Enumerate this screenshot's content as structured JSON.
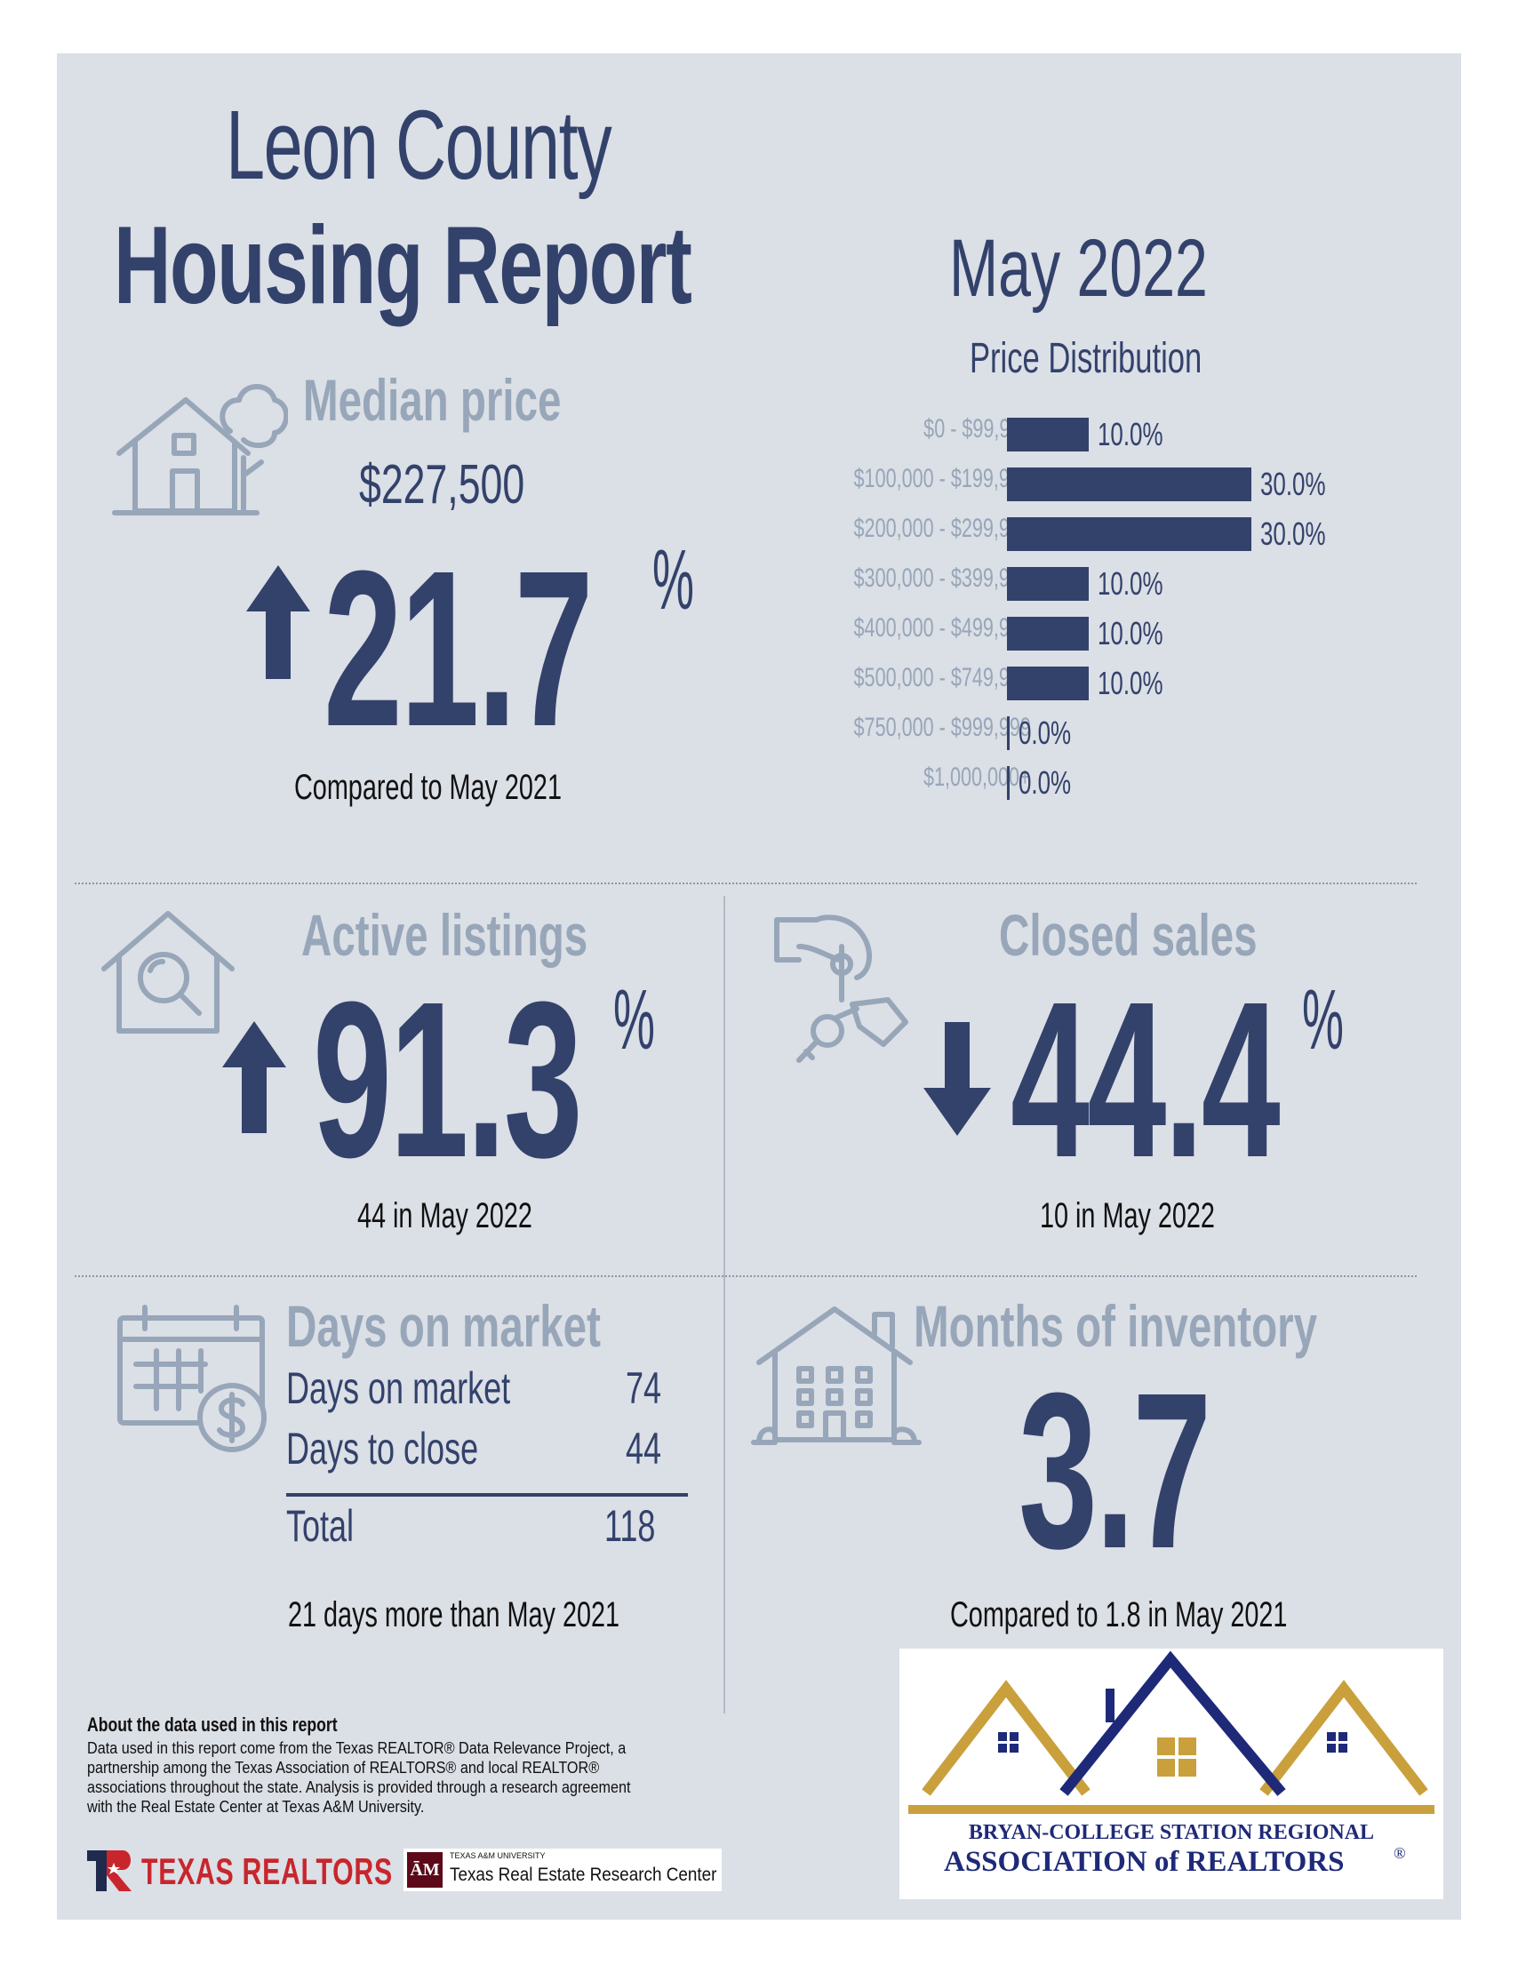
{
  "header": {
    "title_line1": "Leon County",
    "title_line2": "Housing Report",
    "month": "May 2022"
  },
  "median_price": {
    "heading": "Median price",
    "price": "$227,500",
    "change_value": "21.7",
    "change_unit": "%",
    "direction": "up",
    "caption": "Compared to May 2021"
  },
  "price_distribution": {
    "heading": "Price Distribution",
    "rows": [
      {
        "label": "$0 - $99,999",
        "value_text": "10.0%"
      },
      {
        "label": "$100,000 - $199,999",
        "value_text": "30.0%"
      },
      {
        "label": "$200,000 - $299,999",
        "value_text": "30.0%"
      },
      {
        "label": "$300,000 - $399,999",
        "value_text": "10.0%"
      },
      {
        "label": "$400,000 - $499,999",
        "value_text": "10.0%"
      },
      {
        "label": "$500,000 - $749,999",
        "value_text": "10.0%"
      },
      {
        "label": "$750,000 - $999,999",
        "value_text": "0.0%"
      },
      {
        "label": "$1,000,000+",
        "value_text": "0.0%"
      }
    ]
  },
  "chart_data": {
    "type": "bar",
    "orientation": "horizontal",
    "title": "Price Distribution",
    "categories": [
      "$0 - $99,999",
      "$100,000 - $199,999",
      "$200,000 - $299,999",
      "$300,000 - $399,999",
      "$400,000 - $499,999",
      "$500,000 - $749,999",
      "$750,000 - $999,999",
      "$1,000,000+"
    ],
    "values": [
      10.0,
      30.0,
      30.0,
      10.0,
      10.0,
      10.0,
      0.0,
      0.0
    ],
    "xlim": [
      0,
      30
    ],
    "grid": false
  },
  "active_listings": {
    "heading": "Active listings",
    "change_value": "91.3",
    "change_unit": "%",
    "direction": "up",
    "caption": "44 in May 2022"
  },
  "closed_sales": {
    "heading": "Closed sales",
    "change_value": "44.4",
    "change_unit": "%",
    "direction": "down",
    "caption": "10 in May 2022"
  },
  "days_on_market": {
    "heading": "Days on market",
    "rows": [
      {
        "label": "Days on market",
        "value": "74"
      },
      {
        "label": "Days to close",
        "value": "44"
      }
    ],
    "total_label": "Total",
    "total_value": "118",
    "caption": "21 days more than May 2021"
  },
  "months_inventory": {
    "heading": "Months of inventory",
    "value": "3.7",
    "caption": "Compared to 1.8 in May 2021"
  },
  "footer": {
    "about_title": "About the data used in this report",
    "about_text": "Data used in this report come from the Texas REALTOR® Data Relevance Project, a partnership among the Texas Association of REALTORS® and local REALTOR® associations throughout the state. Analysis is provided through a research agreement with the Real Estate Center at Texas A&M University.",
    "texas_realtors": "TEXAS REALTORS",
    "tamu_small": "TEXAS A&M UNIVERSITY",
    "tamu_name": "Texas Real Estate Research Center",
    "assoc_line1": "BRYAN-COLLEGE STATION REGIONAL",
    "assoc_line2": "ASSOCIATION of REALTORS",
    "assoc_reg": "®"
  },
  "colors": {
    "navy": "#33426b",
    "steel": "#97a6b8",
    "panel": "#dbdfe6",
    "gold": "#c9a03c"
  },
  "icons": [
    "house-tree-icon",
    "house-search-icon",
    "hand-keys-icon",
    "calendar-dollar-icon",
    "apartment-house-icon",
    "up-arrow-icon",
    "down-arrow-icon"
  ]
}
